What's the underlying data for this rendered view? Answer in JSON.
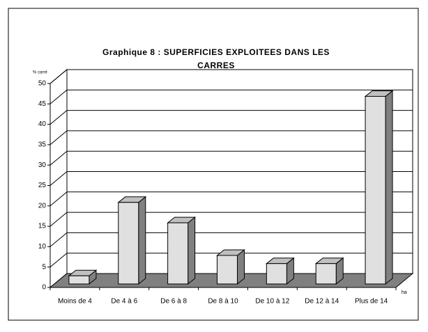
{
  "chart_data": {
    "type": "bar3d",
    "title": [
      "Graphique 8 : SUPERFICIES EXPLOITEES DANS LES",
      "CARRES"
    ],
    "y_label": "% carré",
    "x_label": "ha",
    "categories": [
      "Moins de 4",
      "De 4 à 6",
      "De 6 à 8",
      "De 8 à 10",
      "De 10 à 12",
      "De 12 à 14",
      "Plus de 14"
    ],
    "values": [
      2,
      20,
      15,
      7,
      5,
      5,
      46
    ],
    "color": "#e0e0e0",
    "ylim": [
      0,
      50
    ],
    "yticks": [
      0,
      5,
      10,
      15,
      20,
      25,
      30,
      35,
      40,
      45,
      50
    ],
    "grid": true
  }
}
